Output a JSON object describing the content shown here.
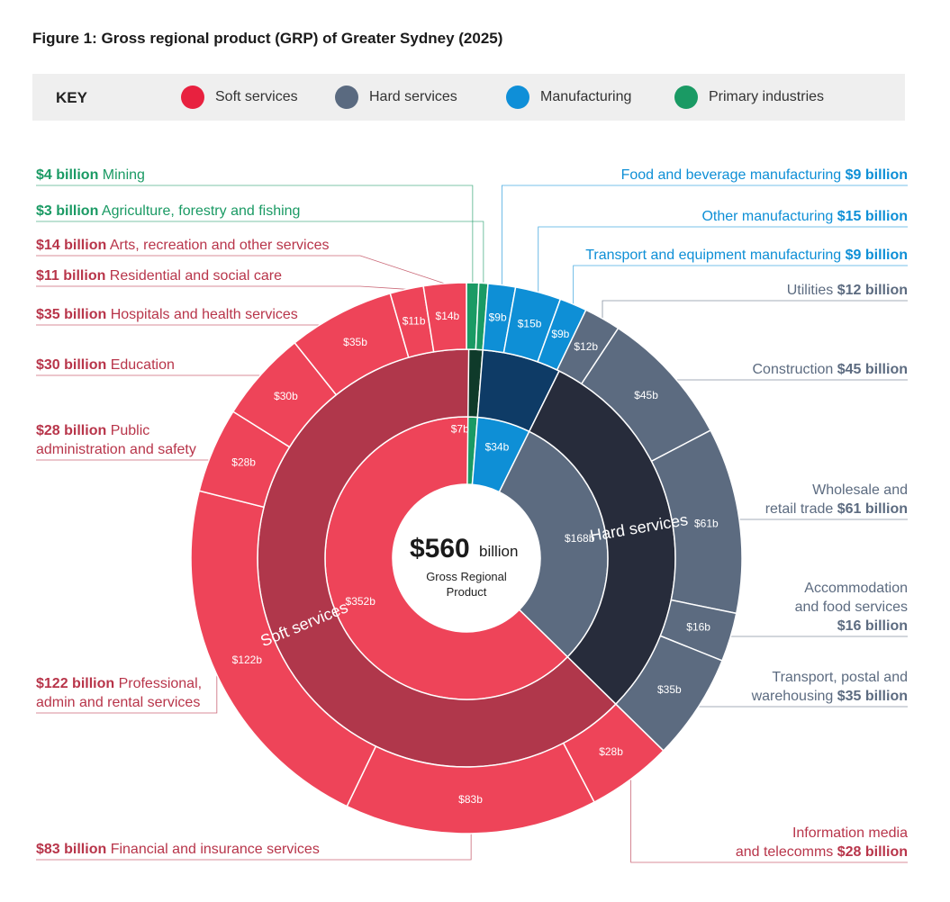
{
  "title": "Figure 1: Gross regional product (GRP) of Greater Sydney (2025)",
  "key": {
    "title": "KEY",
    "items": [
      {
        "label": "Soft services",
        "color": "#e8213f"
      },
      {
        "label": "Hard services",
        "color": "#5a6a80"
      },
      {
        "label": "Manufacturing",
        "color": "#0f8fd8"
      },
      {
        "label": "Primary industries",
        "color": "#1a9a64"
      }
    ]
  },
  "center": {
    "value": "$560",
    "unit": "billion",
    "line1": "Gross Regional",
    "line2": "Product"
  },
  "colors": {
    "soft_outer": "#ee4459",
    "soft_mid": "#b0374b",
    "soft_inner": "#ee4459",
    "soft_text": "#b8354a",
    "hard_outer": "#5c6b80",
    "hard_mid": "#272c3b",
    "hard_inner": "#5c6b80",
    "hard_text": "#5c6b80",
    "manu_outer": "#0e8fd6",
    "manu_mid": "#0e3b66",
    "manu_inner": "#0e8fd6",
    "manu_text": "#0e8fd6",
    "prim_outer": "#1a9a64",
    "prim_mid": "#0f3a2a",
    "prim_inner": "#1a9a64",
    "prim_text": "#1a9a64"
  },
  "chart_data": {
    "type": "sunburst",
    "total": 560,
    "unit": "$ billion",
    "inner": [
      {
        "group": "prim",
        "value": 7,
        "label": "$7b"
      },
      {
        "group": "manu",
        "value": 34,
        "label": "$34b"
      },
      {
        "group": "hard",
        "value": 168,
        "label": "$168b"
      },
      {
        "group": "soft",
        "value": 352,
        "label": "$352b"
      }
    ],
    "middle": [
      {
        "group": "prim",
        "value": 7,
        "label": ""
      },
      {
        "group": "manu",
        "value": 34,
        "label": ""
      },
      {
        "group": "hard",
        "value": 168,
        "label": "Hard services"
      },
      {
        "group": "soft",
        "value": 352,
        "label": "Soft services"
      }
    ],
    "outer": [
      {
        "group": "prim",
        "value": 4,
        "seg": "",
        "amount": "$4 billion",
        "name": "Mining"
      },
      {
        "group": "prim",
        "value": 3,
        "seg": "",
        "amount": "$3 billion",
        "name": "Agriculture, forestry and fishing"
      },
      {
        "group": "manu",
        "value": 9,
        "seg": "$9b",
        "amount": "$9 billion",
        "name": "Food and beverage manufacturing"
      },
      {
        "group": "manu",
        "value": 15,
        "seg": "$15b",
        "amount": "$15 billion",
        "name": "Other manufacturing"
      },
      {
        "group": "manu",
        "value": 9,
        "seg": "$9b",
        "amount": "$9 billion",
        "name": "Transport and equipment manufacturing"
      },
      {
        "group": "hard",
        "value": 12,
        "seg": "$12b",
        "amount": "$12 billion",
        "name": "Utilities"
      },
      {
        "group": "hard",
        "value": 45,
        "seg": "$45b",
        "amount": "$45 billion",
        "name": "Construction"
      },
      {
        "group": "hard",
        "value": 61,
        "seg": "$61b",
        "amount": "$61 billion",
        "name": "Wholesale and retail trade"
      },
      {
        "group": "hard",
        "value": 16,
        "seg": "$16b",
        "amount": "$16 billion",
        "name": "Accommodation and food services"
      },
      {
        "group": "hard",
        "value": 35,
        "seg": "$35b",
        "amount": "$35 billion",
        "name": "Transport, postal and warehousing"
      },
      {
        "group": "soft",
        "value": 28,
        "seg": "$28b",
        "amount": "$28 billion",
        "name": "Information media and telecomms"
      },
      {
        "group": "soft",
        "value": 83,
        "seg": "$83b",
        "amount": "$83 billion",
        "name": "Financial and insurance services"
      },
      {
        "group": "soft",
        "value": 122,
        "seg": "$122b",
        "amount": "$122 billion",
        "name": "Professional, admin and rental services"
      },
      {
        "group": "soft",
        "value": 28,
        "seg": "$28b",
        "amount": "$28 billion",
        "name": "Public administration and safety"
      },
      {
        "group": "soft",
        "value": 30,
        "seg": "$30b",
        "amount": "$30 billion",
        "name": "Education"
      },
      {
        "group": "soft",
        "value": 35,
        "seg": "$35b",
        "amount": "$35 billion",
        "name": "Hospitals and health services"
      },
      {
        "group": "soft",
        "value": 11,
        "seg": "$11b",
        "amount": "$11 billion",
        "name": "Residential and social care"
      },
      {
        "group": "soft",
        "value": 14,
        "seg": "$14b",
        "amount": "$14 billion",
        "name": "Arts, recreation and other services"
      }
    ],
    "callouts_left": [
      {
        "outer_index": 0,
        "lines": [
          [
            {
              "t": "$4 billion",
              "b": true
            },
            {
              "t": " Mining"
            }
          ]
        ]
      },
      {
        "outer_index": 1,
        "lines": [
          [
            {
              "t": "$3 billion",
              "b": true
            },
            {
              "t": " Agriculture, forestry and fishing"
            }
          ]
        ]
      },
      {
        "outer_index": 17,
        "lines": [
          [
            {
              "t": "$14 billion",
              "b": true
            },
            {
              "t": " Arts, recreation and other services"
            }
          ]
        ]
      },
      {
        "outer_index": 16,
        "lines": [
          [
            {
              "t": "$11 billion",
              "b": true
            },
            {
              "t": " Residential and social care"
            }
          ]
        ]
      },
      {
        "outer_index": 15,
        "lines": [
          [
            {
              "t": "$35 billion",
              "b": true
            },
            {
              "t": " Hospitals and health services"
            }
          ]
        ]
      },
      {
        "outer_index": 14,
        "lines": [
          [
            {
              "t": "$30 billion",
              "b": true
            },
            {
              "t": " Education"
            }
          ]
        ]
      },
      {
        "outer_index": 13,
        "lines": [
          [
            {
              "t": "$28 billion",
              "b": true
            },
            {
              "t": " Public"
            }
          ],
          [
            {
              "t": "administration and safety"
            }
          ]
        ]
      },
      {
        "outer_index": 12,
        "lines": [
          [
            {
              "t": "$122 billion",
              "b": true
            },
            {
              "t": " Professional,"
            }
          ],
          [
            {
              "t": "admin and rental services"
            }
          ]
        ]
      },
      {
        "outer_index": 11,
        "lines": [
          [
            {
              "t": "$83 billion",
              "b": true
            },
            {
              "t": " Financial and insurance services"
            }
          ]
        ]
      }
    ],
    "callouts_right": [
      {
        "outer_index": 2,
        "lines": [
          [
            {
              "t": "Food and beverage manufacturing "
            },
            {
              "t": "$9 billion",
              "b": true
            }
          ]
        ]
      },
      {
        "outer_index": 3,
        "lines": [
          [
            {
              "t": "Other manufacturing "
            },
            {
              "t": "$15 billion",
              "b": true
            }
          ]
        ]
      },
      {
        "outer_index": 4,
        "lines": [
          [
            {
              "t": "Transport and equipment manufacturing "
            },
            {
              "t": "$9 billion",
              "b": true
            }
          ]
        ]
      },
      {
        "outer_index": 5,
        "lines": [
          [
            {
              "t": "Utilities "
            },
            {
              "t": "$12 billion",
              "b": true
            }
          ]
        ]
      },
      {
        "outer_index": 6,
        "lines": [
          [
            {
              "t": "Construction "
            },
            {
              "t": "$45 billion",
              "b": true
            }
          ]
        ]
      },
      {
        "outer_index": 7,
        "lines": [
          [
            {
              "t": "Wholesale and"
            }
          ],
          [
            {
              "t": "retail trade "
            },
            {
              "t": "$61 billion",
              "b": true
            }
          ]
        ]
      },
      {
        "outer_index": 8,
        "lines": [
          [
            {
              "t": "Accommodation"
            }
          ],
          [
            {
              "t": "and food services"
            }
          ],
          [
            {
              "t": "$16 billion",
              "b": true
            }
          ]
        ]
      },
      {
        "outer_index": 9,
        "lines": [
          [
            {
              "t": "Transport, postal and "
            }
          ],
          [
            {
              "t": "warehousing "
            },
            {
              "t": "$35 billion",
              "b": true
            }
          ]
        ]
      },
      {
        "outer_index": 10,
        "lines": [
          [
            {
              "t": "Information media"
            }
          ],
          [
            {
              "t": "and telecomms "
            },
            {
              "t": "$28 billion",
              "b": true
            }
          ]
        ]
      }
    ]
  }
}
